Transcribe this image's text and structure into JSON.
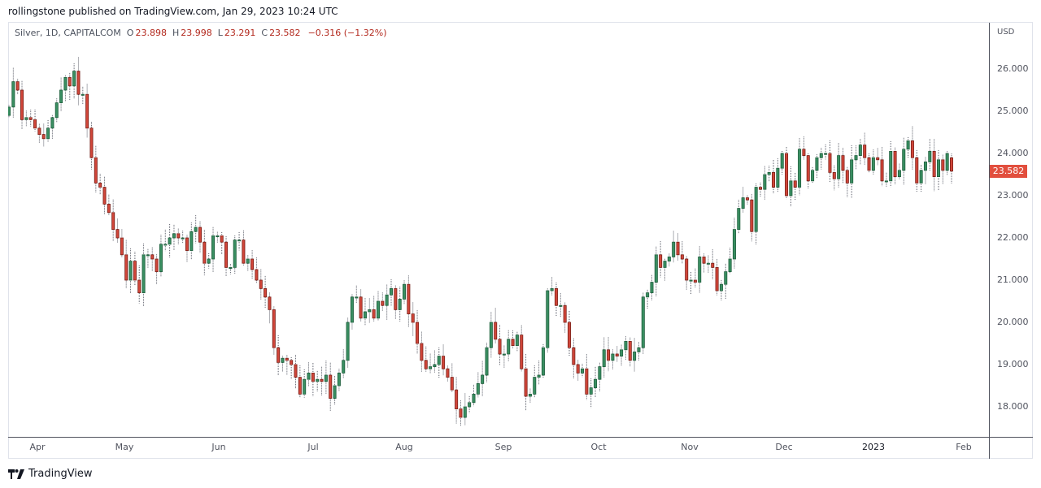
{
  "header": {
    "published": "rollingstone published on TradingView.com, Jan 29, 2023 10:24 UTC"
  },
  "legend": {
    "symbol": "Silver, 1D, CAPITALCOM",
    "o_label": "O",
    "o": "23.898",
    "h_label": "H",
    "h": "23.998",
    "l_label": "L",
    "l": "23.291",
    "c_label": "C",
    "c": "23.582",
    "change": "−0.316 (−1.32%)"
  },
  "price_axis": {
    "currency": "USD",
    "ticks": [
      "26.000",
      "25.000",
      "24.000",
      "23.000",
      "22.000",
      "21.000",
      "20.000",
      "19.000",
      "18.000"
    ],
    "last_price": "23.582"
  },
  "time_axis": {
    "ticks": [
      "Apr",
      "May",
      "Jun",
      "Jul",
      "Aug",
      "Sep",
      "Oct",
      "Nov",
      "Dec",
      "2023",
      "Feb"
    ]
  },
  "footer": {
    "brand": "TradingView"
  },
  "colors": {
    "up": "#26a69a",
    "up_body": "#3a8f62",
    "down": "#c0392b",
    "down_body": "#d1463a",
    "wick": "#5d606b",
    "price_tag": "#e24f3e"
  },
  "chart_data": {
    "type": "candlestick",
    "title": "Silver, 1D, CAPITALCOM",
    "xlabel": "",
    "ylabel": "USD",
    "ylim": [
      17.2,
      26.9
    ],
    "x_range": [
      "2022-03-25",
      "2023-01-27"
    ],
    "legend_position": "top-left",
    "grid": false,
    "last": {
      "open": 23.898,
      "high": 23.998,
      "low": 23.291,
      "close": 23.582,
      "change": -0.316,
      "change_pct": -1.32
    },
    "closes": [
      25.1,
      25.7,
      25.5,
      24.8,
      24.85,
      24.8,
      24.6,
      24.45,
      24.35,
      24.6,
      24.85,
      25.2,
      25.5,
      25.8,
      25.6,
      25.95,
      25.4,
      25.4,
      24.6,
      23.9,
      23.3,
      23.2,
      22.8,
      22.6,
      22.2,
      22.0,
      21.6,
      21.0,
      21.45,
      21.0,
      20.7,
      21.6,
      21.6,
      21.5,
      21.2,
      21.85,
      21.85,
      22.0,
      22.1,
      22.0,
      22.0,
      21.7,
      22.15,
      22.25,
      21.9,
      21.4,
      21.5,
      22.05,
      22.05,
      21.9,
      21.3,
      21.3,
      21.95,
      21.95,
      21.4,
      21.5,
      21.25,
      21.0,
      20.8,
      20.6,
      20.3,
      19.4,
      19.05,
      19.15,
      19.1,
      19.0,
      18.7,
      18.3,
      18.65,
      18.8,
      18.6,
      18.65,
      18.6,
      18.75,
      18.2,
      18.5,
      18.8,
      19.1,
      20.0,
      20.6,
      20.6,
      20.1,
      20.25,
      20.3,
      20.1,
      20.5,
      20.4,
      20.65,
      20.8,
      20.3,
      20.55,
      20.9,
      20.2,
      20.0,
      19.5,
      19.1,
      18.9,
      18.95,
      19.0,
      19.2,
      18.9,
      18.7,
      18.4,
      17.95,
      17.75,
      18.0,
      18.1,
      18.3,
      18.55,
      18.75,
      19.4,
      20.0,
      19.6,
      19.25,
      19.25,
      19.6,
      19.45,
      19.7,
      18.9,
      18.25,
      18.3,
      18.7,
      18.75,
      19.4,
      20.75,
      20.8,
      20.4,
      20.4,
      20.0,
      19.4,
      19.0,
      18.8,
      18.9,
      18.3,
      18.45,
      18.65,
      18.95,
      19.35,
      19.1,
      19.25,
      19.2,
      19.35,
      19.55,
      19.1,
      19.3,
      19.4,
      20.6,
      20.7,
      20.95,
      21.6,
      21.3,
      21.45,
      21.55,
      21.9,
      21.6,
      21.5,
      21.0,
      21.0,
      20.95,
      21.55,
      21.4,
      21.4,
      21.3,
      20.75,
      20.9,
      21.2,
      21.5,
      22.2,
      22.7,
      22.95,
      22.9,
      22.15,
      23.2,
      23.15,
      23.5,
      23.55,
      23.2,
      23.65,
      24.0,
      23.0,
      23.35,
      23.2,
      24.1,
      23.95,
      23.35,
      23.6,
      23.9,
      24.0,
      24.0,
      23.55,
      23.4,
      23.95,
      23.6,
      23.3,
      23.85,
      23.95,
      24.2,
      23.9,
      23.6,
      23.9,
      23.85,
      23.35,
      23.35,
      24.05,
      23.45,
      23.6,
      24.1,
      24.3,
      23.9,
      23.3,
      23.6,
      23.8,
      24.05,
      23.45,
      23.85,
      23.6,
      24.0,
      23.582
    ]
  }
}
